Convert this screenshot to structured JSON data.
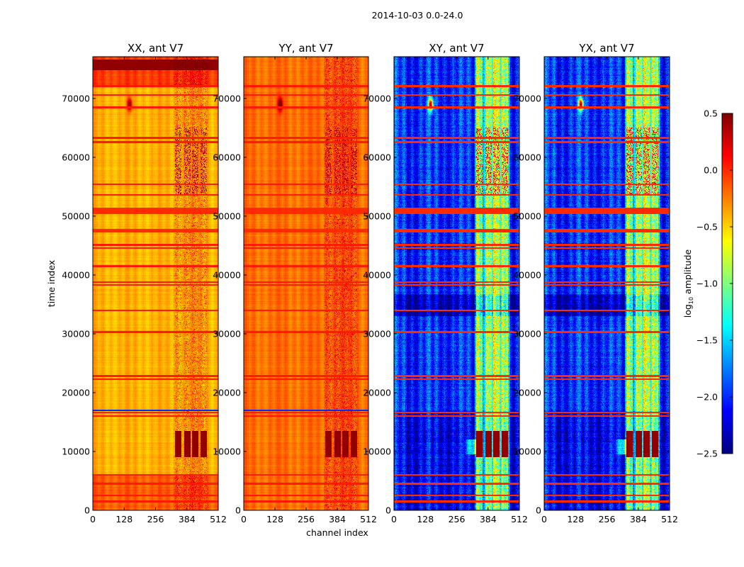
{
  "figure_title": "2014-10-03 0.0-24.0",
  "chart_data": {
    "type": "heatmap",
    "title": "2014-10-03 0.0-24.0",
    "xlabel": "channel index",
    "ylabel": "time index",
    "xlim": [
      0,
      512
    ],
    "ylim": [
      0,
      77100
    ],
    "xticks": [
      0,
      128,
      256,
      384,
      512
    ],
    "yticks": [
      0,
      10000,
      20000,
      30000,
      40000,
      50000,
      60000,
      70000
    ],
    "colormap": "jet",
    "panels": [
      {
        "title": "XX, ant V7",
        "kind": "parallel",
        "base_log10": -0.4
      },
      {
        "title": "YY, ant V7",
        "kind": "parallel",
        "base_log10": -0.2
      },
      {
        "title": "XY, ant V7",
        "kind": "cross",
        "base_log10": -2.0
      },
      {
        "title": "YX, ant V7",
        "kind": "cross",
        "base_log10": -2.0
      }
    ],
    "features": {
      "rfi_channel_stripes": [
        [
          335,
          360
        ],
        [
          372,
          398
        ],
        [
          405,
          430
        ],
        [
          440,
          465
        ]
      ],
      "flagged_time_rows": [
        1500,
        2500,
        4500,
        6000,
        16000,
        16600,
        22300,
        22800,
        30300,
        34000,
        38300,
        38800,
        41500,
        44600,
        45100,
        53600,
        55400,
        62600,
        63300,
        68500,
        70600,
        72100
      ],
      "flagged_time_bands": [
        [
          47200,
          47800
        ],
        [
          50400,
          51400
        ]
      ],
      "blue_row_parallel": 17000,
      "hot_burst_time_range": [
        9000,
        13500
      ],
      "point_source": {
        "channel": 150,
        "time": 69000
      }
    },
    "colorbar": {
      "label_prefix": "log",
      "label_sub": "10",
      "label_suffix": " amplitude",
      "range": [
        -2.5,
        0.5
      ],
      "ticks": [
        "0.5",
        "0.0",
        "−0.5",
        "−1.0",
        "−1.5",
        "−2.0",
        "−2.5"
      ],
      "tick_values": [
        0.5,
        0.0,
        -0.5,
        -1.0,
        -1.5,
        -2.0,
        -2.5
      ]
    }
  }
}
